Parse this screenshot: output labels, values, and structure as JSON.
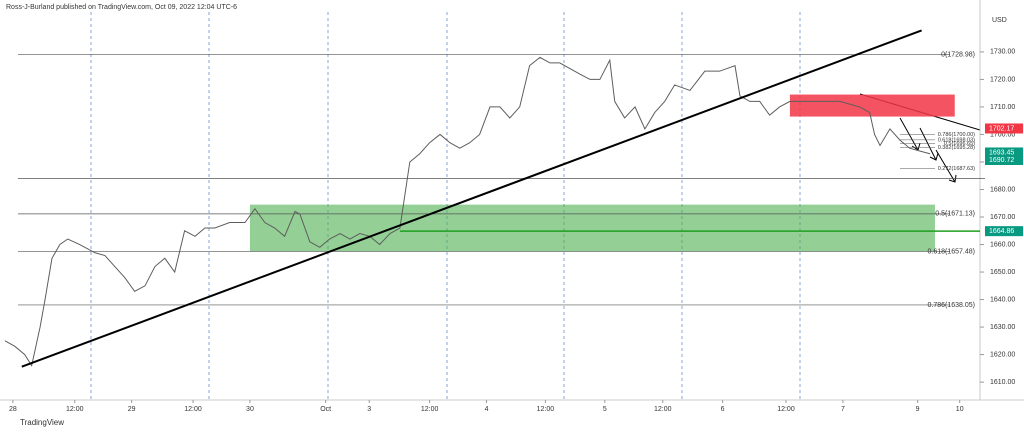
{
  "chart_data": {
    "type": "line",
    "header": "Ross-J-Burland published on TradingView.com, Oct 09, 2022 12:04 UTC-6",
    "currency": "USD",
    "footer": "TradingView",
    "x": [
      -1.6,
      0.4,
      2.4,
      3.8,
      5.5,
      6.5,
      7.9,
      9.5,
      11.1,
      13.5,
      16.6,
      18.6,
      20.6,
      22.6,
      24.6,
      26.7,
      28.7,
      30.7,
      32.7,
      34.7,
      36.8,
      38.8,
      40.8,
      43.8,
      46.9,
      48.9,
      50.9,
      52.9,
      54.9,
      57,
      58,
      60,
      62,
      64,
      66.1,
      68.1,
      70.1,
      72.1,
      74.1,
      76.2,
      78.2,
      80.2,
      82.2,
      84.2,
      86.3,
      88.3,
      90.3,
      92.3,
      94.3,
      96.4,
      98.4,
      100.4,
      102.4,
      104.4,
      106.5,
      108.5,
      110.5,
      112.5,
      114.5,
      116.6,
      118.6,
      120.6,
      121.6,
      123.6,
      125.7,
      127.7,
      129.7,
      131.7,
      133.7,
      136.8,
      139.8,
      142.8,
      145.9,
      146.9,
      148.9,
      150.9,
      152.9,
      154.9,
      157,
      159,
      163,
      167.1,
      171.1,
      173.1,
      174.1,
      175.2,
      177.2,
      179.2,
      181.2,
      183.2,
      185.3
    ],
    "series": [
      {
        "color": "#5d5d5d",
        "values": [
          1625,
          1623,
          1620,
          1616,
          1630,
          1640,
          1655,
          1660,
          1662,
          1660,
          1657,
          1656,
          1652,
          1648,
          1643,
          1645,
          1652,
          1655,
          1650,
          1665,
          1663,
          1666,
          1666,
          1668,
          1668,
          1673,
          1668,
          1666,
          1663,
          1672,
          1671,
          1661,
          1659,
          1662,
          1664,
          1662,
          1664,
          1663,
          1660,
          1664,
          1666,
          1690,
          1693,
          1697,
          1700,
          1697,
          1695,
          1697,
          1700,
          1710,
          1710,
          1706,
          1710,
          1725,
          1728,
          1726,
          1726,
          1724,
          1722,
          1720,
          1720,
          1727,
          1712,
          1706,
          1710,
          1702,
          1708,
          1712,
          1718,
          1716,
          1723,
          1723,
          1725,
          1714,
          1712,
          1712,
          1707,
          1710,
          1712,
          1712,
          1712,
          1712,
          1710,
          1708,
          1700,
          1696,
          1702,
          1698,
          1695,
          1694,
          1693
        ]
      }
    ],
    "xlim": [
      -2.6,
      195.4
    ],
    "ylim": [
      1603.5,
      1744.5
    ],
    "xticks": [
      {
        "value": 0,
        "label": "28"
      },
      {
        "value": 12.5,
        "label": "12:00"
      },
      {
        "value": 24,
        "label": "29"
      },
      {
        "value": 36.4,
        "label": "12:00"
      },
      {
        "value": 47.9,
        "label": "30"
      },
      {
        "value": 63.2,
        "label": "Oct"
      },
      {
        "value": 72,
        "label": "3"
      },
      {
        "value": 84.2,
        "label": "12:00"
      },
      {
        "value": 95.7,
        "label": "4"
      },
      {
        "value": 107.6,
        "label": "12:00"
      },
      {
        "value": 119.6,
        "label": "5"
      },
      {
        "value": 131.3,
        "label": "12:00"
      },
      {
        "value": 143.4,
        "label": "6"
      },
      {
        "value": 156.2,
        "label": "12:00"
      },
      {
        "value": 167.7,
        "label": "7"
      },
      {
        "value": 182.8,
        "label": "9"
      },
      {
        "value": 191.3,
        "label": "10"
      }
    ],
    "yticks": [
      {
        "value": 1610,
        "label": "1610.00"
      },
      {
        "value": 1620,
        "label": "1620.00"
      },
      {
        "value": 1630,
        "label": "1630.00"
      },
      {
        "value": 1640,
        "label": "1640.00"
      },
      {
        "value": 1650,
        "label": "1650.00"
      },
      {
        "value": 1660,
        "label": "1660.00"
      },
      {
        "value": 1670,
        "label": "1670.00"
      },
      {
        "value": 1680,
        "label": "1680.00"
      },
      {
        "value": 1690,
        "label": "1690.00"
      },
      {
        "value": 1700,
        "label": "1700.00"
      },
      {
        "value": 1710,
        "label": "1710.00"
      },
      {
        "value": 1720,
        "label": "1720.00"
      },
      {
        "value": 1730,
        "label": "1730.00"
      }
    ],
    "levels": [
      {
        "value": 1728.98,
        "label": "0(1728.98)"
      },
      {
        "value": 1671.13,
        "label": "0.5(1671.13)"
      },
      {
        "value": 1657.48,
        "label": "0.618(1657.48)"
      },
      {
        "value": 1638.05,
        "label": "0.786(1638.05)"
      },
      {
        "value": 1684
      }
    ],
    "fib_small": [
      {
        "value": 1700,
        "label": "0.786(1700.00)"
      },
      {
        "value": 1698.03,
        "label": "0.618(1698.03)"
      },
      {
        "value": 1696.65,
        "label": "0.5(1696.65)"
      },
      {
        "value": 1695.28,
        "label": "0.382(1695.28)"
      },
      {
        "value": 1687.63,
        "label": "0.272(1687.63)"
      }
    ],
    "zones": [
      {
        "y": [
          1657.5,
          1674.5
        ],
        "x": [
          47.9,
          186.3
        ],
        "color": "rgba(76,175,80,0.6)"
      },
      {
        "y": [
          1706.5,
          1714.5
        ],
        "x": [
          157,
          190.3
        ],
        "color": "rgba(242,54,69,0.85)"
      }
    ],
    "trendline": {
      "x": [
        1.8,
        183.6
      ],
      "y": [
        1615.6,
        1737.8
      ],
      "color": "#000000"
    },
    "support": {
      "value": 1664.86,
      "x0": 78.2,
      "color": "#1e9e1e"
    },
    "price_tags": [
      {
        "value": 1702.17,
        "color": "#f23645"
      },
      {
        "value": 1693.45,
        "color": "#089981"
      },
      {
        "value": 1690.72,
        "color": "#089981"
      },
      {
        "value": 1664.86,
        "color": "#089981"
      }
    ]
  }
}
